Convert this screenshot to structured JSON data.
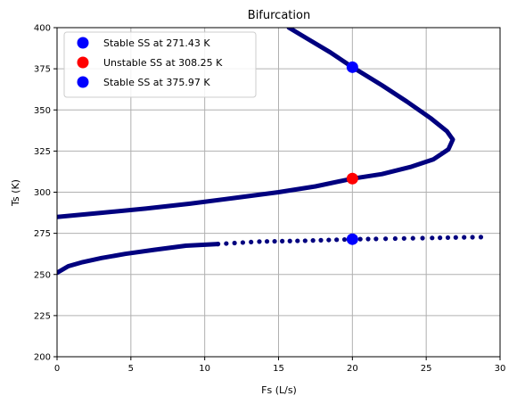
{
  "chart_data": {
    "type": "scatter",
    "title": "Bifurcation",
    "xlabel": "Fs (L/s)",
    "ylabel": "Ts (K)",
    "xlim": [
      0,
      30
    ],
    "ylim": [
      200,
      400
    ],
    "xticks": [
      0,
      5,
      10,
      15,
      20,
      25,
      30
    ],
    "yticks": [
      200,
      225,
      250,
      275,
      300,
      325,
      350,
      375,
      400
    ],
    "grid": true,
    "legend_position": "top-left",
    "curve": {
      "color": "#00007f",
      "description_points": [
        [
          0.0,
          251.0
        ],
        [
          0.76,
          255.0
        ],
        [
          1.74,
          257.5
        ],
        [
          3.01,
          260.0
        ],
        [
          4.61,
          262.5
        ],
        [
          6.58,
          265.0
        ],
        [
          8.72,
          267.5
        ],
        [
          10.9,
          268.5
        ],
        [
          13.7,
          270.0
        ],
        [
          16.8,
          270.5
        ],
        [
          20.0,
          271.4
        ],
        [
          21.6,
          271.6
        ],
        [
          22.9,
          271.8
        ],
        [
          24.1,
          272.0
        ],
        [
          25.4,
          272.2
        ],
        [
          27.0,
          272.5
        ],
        [
          28.7,
          272.7
        ]
      ],
      "upper_points": [
        [
          0.0,
          285.0
        ],
        [
          3.0,
          287.5
        ],
        [
          6.0,
          290.0
        ],
        [
          9.0,
          293.0
        ],
        [
          12.0,
          296.5
        ],
        [
          15.0,
          300.0
        ],
        [
          17.5,
          303.5
        ],
        [
          20.0,
          308.25
        ],
        [
          22.0,
          311.0
        ],
        [
          24.0,
          315.5
        ],
        [
          25.5,
          320.0
        ],
        [
          26.5,
          326.0
        ],
        [
          26.8,
          332.0
        ],
        [
          26.4,
          337.0
        ],
        [
          25.3,
          345.0
        ],
        [
          23.7,
          355.0
        ],
        [
          22.0,
          365.0
        ],
        [
          20.0,
          375.97
        ],
        [
          18.5,
          385.0
        ],
        [
          17.0,
          393.0
        ],
        [
          15.7,
          400.0
        ]
      ]
    },
    "series": [
      {
        "name": "Stable SS at 271.43 K",
        "color": "#0000ff",
        "x": [
          20
        ],
        "y": [
          271.43
        ]
      },
      {
        "name": "Unstable SS at 308.25 K",
        "color": "#ff0000",
        "x": [
          20
        ],
        "y": [
          308.25
        ]
      },
      {
        "name": "Stable SS at 375.97 K",
        "color": "#0000ff",
        "x": [
          20
        ],
        "y": [
          375.97
        ]
      }
    ]
  }
}
